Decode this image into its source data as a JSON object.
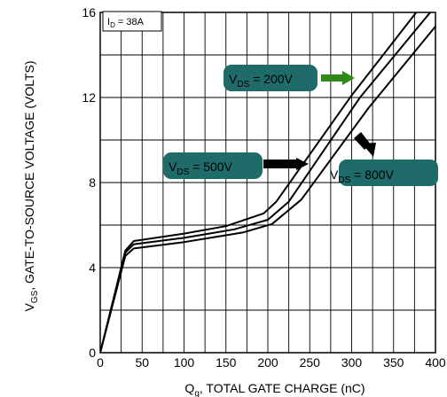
{
  "chart_data": {
    "type": "line",
    "title": "",
    "xlabel": {
      "main": "Q",
      "sub": "g",
      "rest": ", TOTAL GATE CHARGE (nC)"
    },
    "ylabel": {
      "main": "V",
      "sub": "GS",
      "rest": ", GATE-TO-SOURCE VOLTAGE (VOLTS)"
    },
    "xlim": [
      0,
      400
    ],
    "ylim": [
      0,
      16
    ],
    "x_ticks": [
      0,
      50,
      100,
      150,
      200,
      250,
      300,
      350,
      400
    ],
    "y_ticks": [
      0,
      4,
      8,
      12,
      16
    ],
    "x_minor_step": 25,
    "y_minor_step": 2,
    "grid": true,
    "condition": {
      "main": "I",
      "sub": "D",
      "rest": " = 38A"
    },
    "series": [
      {
        "name": "VDS = 200V",
        "points": [
          [
            0,
            0
          ],
          [
            30,
            4.8
          ],
          [
            40,
            5.25
          ],
          [
            100,
            5.6
          ],
          [
            150,
            5.95
          ],
          [
            195,
            6.55
          ],
          [
            210,
            7.1
          ],
          [
            300,
            12.1
          ],
          [
            385,
            16.4
          ]
        ]
      },
      {
        "name": "VDS = 500V",
        "points": [
          [
            0,
            0
          ],
          [
            30,
            4.7
          ],
          [
            40,
            5.1
          ],
          [
            100,
            5.4
          ],
          [
            160,
            5.8
          ],
          [
            200,
            6.25
          ],
          [
            225,
            7.1
          ],
          [
            310,
            12.0
          ],
          [
            400,
            16.3
          ]
        ]
      },
      {
        "name": "VDS = 800V",
        "points": [
          [
            0,
            0
          ],
          [
            30,
            4.55
          ],
          [
            40,
            4.9
          ],
          [
            100,
            5.2
          ],
          [
            170,
            5.65
          ],
          [
            205,
            6.05
          ],
          [
            240,
            7.2
          ],
          [
            320,
            11.5
          ],
          [
            420,
            16.3
          ]
        ]
      }
    ],
    "callouts": [
      {
        "main": "V",
        "sub": "DS",
        "rest": " = 200V",
        "fill": "#1f6b6a",
        "arrow_color": "#2e8b1a"
      },
      {
        "main": "V",
        "sub": "DS",
        "rest": " = 500V",
        "fill": "#1f6b6a",
        "arrow_color": "#000000"
      },
      {
        "main": "V",
        "sub": "DS",
        "rest": " = 800V",
        "fill": "#1f6b6a",
        "arrow_color": "#000000"
      }
    ]
  }
}
